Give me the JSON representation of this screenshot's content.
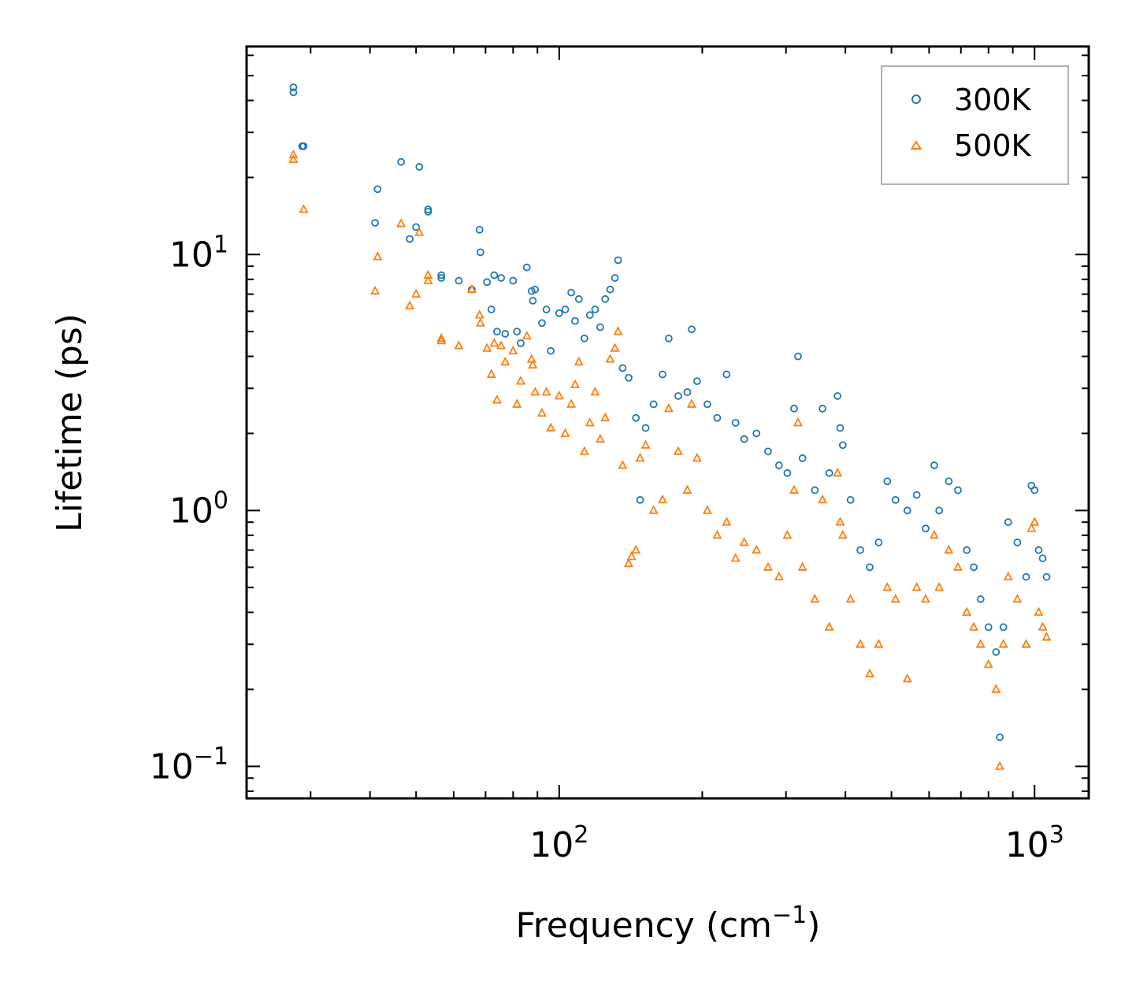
{
  "chart_data": {
    "type": "scatter",
    "xscale": "log",
    "yscale": "log",
    "xlim": [
      22,
      1300
    ],
    "ylim": [
      0.075,
      65
    ],
    "xlabel": "Frequency (cm",
    "xlabel_sup": "−1",
    "xlabel_end": ")",
    "ylabel": "Lifetime (ps)",
    "x_ticks": [
      {
        "value": 100,
        "base": "10",
        "exp": "2"
      },
      {
        "value": 1000,
        "base": "10",
        "exp": "3"
      }
    ],
    "y_ticks": [
      {
        "value": 0.1,
        "base": "10",
        "exp": "−1"
      },
      {
        "value": 1,
        "base": "10",
        "exp": "0"
      },
      {
        "value": 10,
        "base": "10",
        "exp": "1"
      }
    ],
    "legend": {
      "placement": "top-right"
    },
    "series": [
      {
        "name": "300K",
        "marker": "circle",
        "color": "#1f77b4",
        "points": [
          [
            27.6,
            45
          ],
          [
            27.6,
            43
          ],
          [
            28.8,
            26.5
          ],
          [
            29,
            26.5
          ],
          [
            41,
            13.3
          ],
          [
            41.5,
            18
          ],
          [
            46.5,
            23
          ],
          [
            48.5,
            11.5
          ],
          [
            50,
            12.8
          ],
          [
            50.8,
            22
          ],
          [
            53,
            15
          ],
          [
            53,
            14.7
          ],
          [
            56.5,
            8.3
          ],
          [
            56.5,
            8.1
          ],
          [
            61.5,
            7.9
          ],
          [
            65.5,
            7.3
          ],
          [
            68,
            12.5
          ],
          [
            68.3,
            10.2
          ],
          [
            70.5,
            7.8
          ],
          [
            72,
            6.1
          ],
          [
            73,
            8.3
          ],
          [
            74,
            5
          ],
          [
            75.5,
            8.1
          ],
          [
            77,
            4.9
          ],
          [
            80,
            7.9
          ],
          [
            81.5,
            5
          ],
          [
            83,
            4.5
          ],
          [
            85.5,
            8.9
          ],
          [
            87.5,
            7.2
          ],
          [
            88,
            6.6
          ],
          [
            89,
            7.3
          ],
          [
            92,
            5.4
          ],
          [
            94,
            6.1
          ],
          [
            96,
            4.2
          ],
          [
            100,
            5.9
          ],
          [
            103,
            6.1
          ],
          [
            106,
            7.1
          ],
          [
            108,
            5.5
          ],
          [
            110,
            6.7
          ],
          [
            113,
            4.7
          ],
          [
            116,
            5.8
          ],
          [
            119,
            6.1
          ],
          [
            122,
            5.2
          ],
          [
            125,
            6.7
          ],
          [
            128,
            7.3
          ],
          [
            131,
            8.1
          ],
          [
            133,
            9.5
          ],
          [
            136,
            3.6
          ],
          [
            140,
            3.3
          ],
          [
            145,
            2.3
          ],
          [
            148,
            1.1
          ],
          [
            152,
            2.1
          ],
          [
            158,
            2.6
          ],
          [
            165,
            3.4
          ],
          [
            170,
            4.7
          ],
          [
            178,
            2.8
          ],
          [
            186,
            2.9
          ],
          [
            190,
            5.1
          ],
          [
            195,
            3.2
          ],
          [
            205,
            2.6
          ],
          [
            215,
            2.3
          ],
          [
            225,
            3.4
          ],
          [
            235,
            2.2
          ],
          [
            245,
            1.9
          ],
          [
            260,
            2.0
          ],
          [
            275,
            1.7
          ],
          [
            290,
            1.5
          ],
          [
            302,
            1.4
          ],
          [
            312,
            2.5
          ],
          [
            318,
            4.0
          ],
          [
            325,
            1.6
          ],
          [
            345,
            1.2
          ],
          [
            358,
            2.5
          ],
          [
            370,
            1.4
          ],
          [
            385,
            2.8
          ],
          [
            390,
            2.1
          ],
          [
            395,
            1.8
          ],
          [
            410,
            1.1
          ],
          [
            430,
            0.7
          ],
          [
            450,
            0.6
          ],
          [
            470,
            0.75
          ],
          [
            490,
            1.3
          ],
          [
            510,
            1.1
          ],
          [
            540,
            1.0
          ],
          [
            565,
            1.15
          ],
          [
            590,
            0.85
          ],
          [
            615,
            1.5
          ],
          [
            630,
            1.0
          ],
          [
            660,
            1.3
          ],
          [
            690,
            1.2
          ],
          [
            720,
            0.7
          ],
          [
            745,
            0.6
          ],
          [
            770,
            0.45
          ],
          [
            800,
            0.35
          ],
          [
            830,
            0.28
          ],
          [
            845,
            0.13
          ],
          [
            860,
            0.35
          ],
          [
            880,
            0.9
          ],
          [
            920,
            0.75
          ],
          [
            960,
            0.55
          ],
          [
            985,
            1.25
          ],
          [
            1000,
            1.2
          ],
          [
            1020,
            0.7
          ],
          [
            1040,
            0.65
          ],
          [
            1060,
            0.55
          ]
        ]
      },
      {
        "name": "500K",
        "marker": "triangle",
        "color": "#ff7f0e",
        "points": [
          [
            27.6,
            24.5
          ],
          [
            27.6,
            23.5
          ],
          [
            29,
            15
          ],
          [
            41,
            7.2
          ],
          [
            41.5,
            9.8
          ],
          [
            46.5,
            13.2
          ],
          [
            48.5,
            6.3
          ],
          [
            50,
            7
          ],
          [
            50.8,
            12.2
          ],
          [
            53,
            8.3
          ],
          [
            53,
            7.9
          ],
          [
            56.5,
            4.7
          ],
          [
            56.5,
            4.6
          ],
          [
            61.5,
            4.4
          ],
          [
            65.5,
            7.3
          ],
          [
            68,
            5.8
          ],
          [
            68.3,
            5.4
          ],
          [
            70.5,
            4.3
          ],
          [
            72,
            3.4
          ],
          [
            73,
            4.5
          ],
          [
            74,
            2.7
          ],
          [
            75.5,
            4.4
          ],
          [
            77,
            3.8
          ],
          [
            80,
            4.2
          ],
          [
            81.5,
            2.6
          ],
          [
            83,
            3.2
          ],
          [
            85.5,
            4.8
          ],
          [
            87.5,
            3.9
          ],
          [
            88,
            3.7
          ],
          [
            89,
            2.9
          ],
          [
            92,
            2.4
          ],
          [
            94,
            2.9
          ],
          [
            96,
            2.1
          ],
          [
            100,
            2.8
          ],
          [
            103,
            2.0
          ],
          [
            106,
            2.6
          ],
          [
            108,
            3.1
          ],
          [
            110,
            3.8
          ],
          [
            113,
            1.7
          ],
          [
            116,
            2.2
          ],
          [
            119,
            2.9
          ],
          [
            122,
            1.9
          ],
          [
            125,
            2.3
          ],
          [
            128,
            3.9
          ],
          [
            131,
            4.3
          ],
          [
            133,
            5.0
          ],
          [
            136,
            1.5
          ],
          [
            140,
            0.62
          ],
          [
            142,
            0.66
          ],
          [
            145,
            0.7
          ],
          [
            148,
            1.6
          ],
          [
            152,
            1.8
          ],
          [
            158,
            1.0
          ],
          [
            165,
            1.1
          ],
          [
            170,
            2.5
          ],
          [
            178,
            1.7
          ],
          [
            186,
            1.2
          ],
          [
            190,
            2.6
          ],
          [
            195,
            1.6
          ],
          [
            205,
            1.0
          ],
          [
            215,
            0.8
          ],
          [
            225,
            0.9
          ],
          [
            235,
            0.65
          ],
          [
            245,
            0.75
          ],
          [
            260,
            0.7
          ],
          [
            275,
            0.6
          ],
          [
            290,
            0.55
          ],
          [
            302,
            0.8
          ],
          [
            312,
            1.2
          ],
          [
            318,
            2.2
          ],
          [
            325,
            0.6
          ],
          [
            345,
            0.45
          ],
          [
            358,
            1.1
          ],
          [
            370,
            0.35
          ],
          [
            385,
            1.4
          ],
          [
            390,
            0.9
          ],
          [
            395,
            0.8
          ],
          [
            410,
            0.45
          ],
          [
            430,
            0.3
          ],
          [
            450,
            0.23
          ],
          [
            470,
            0.3
          ],
          [
            490,
            0.5
          ],
          [
            510,
            0.45
          ],
          [
            540,
            0.22
          ],
          [
            565,
            0.5
          ],
          [
            590,
            0.45
          ],
          [
            615,
            0.8
          ],
          [
            630,
            0.5
          ],
          [
            660,
            0.7
          ],
          [
            690,
            0.6
          ],
          [
            720,
            0.4
          ],
          [
            745,
            0.35
          ],
          [
            770,
            0.3
          ],
          [
            800,
            0.25
          ],
          [
            830,
            0.2
          ],
          [
            845,
            0.1
          ],
          [
            860,
            0.3
          ],
          [
            880,
            0.55
          ],
          [
            920,
            0.45
          ],
          [
            960,
            0.3
          ],
          [
            985,
            0.85
          ],
          [
            1000,
            0.9
          ],
          [
            1020,
            0.4
          ],
          [
            1040,
            0.35
          ],
          [
            1060,
            0.32
          ]
        ]
      }
    ]
  }
}
